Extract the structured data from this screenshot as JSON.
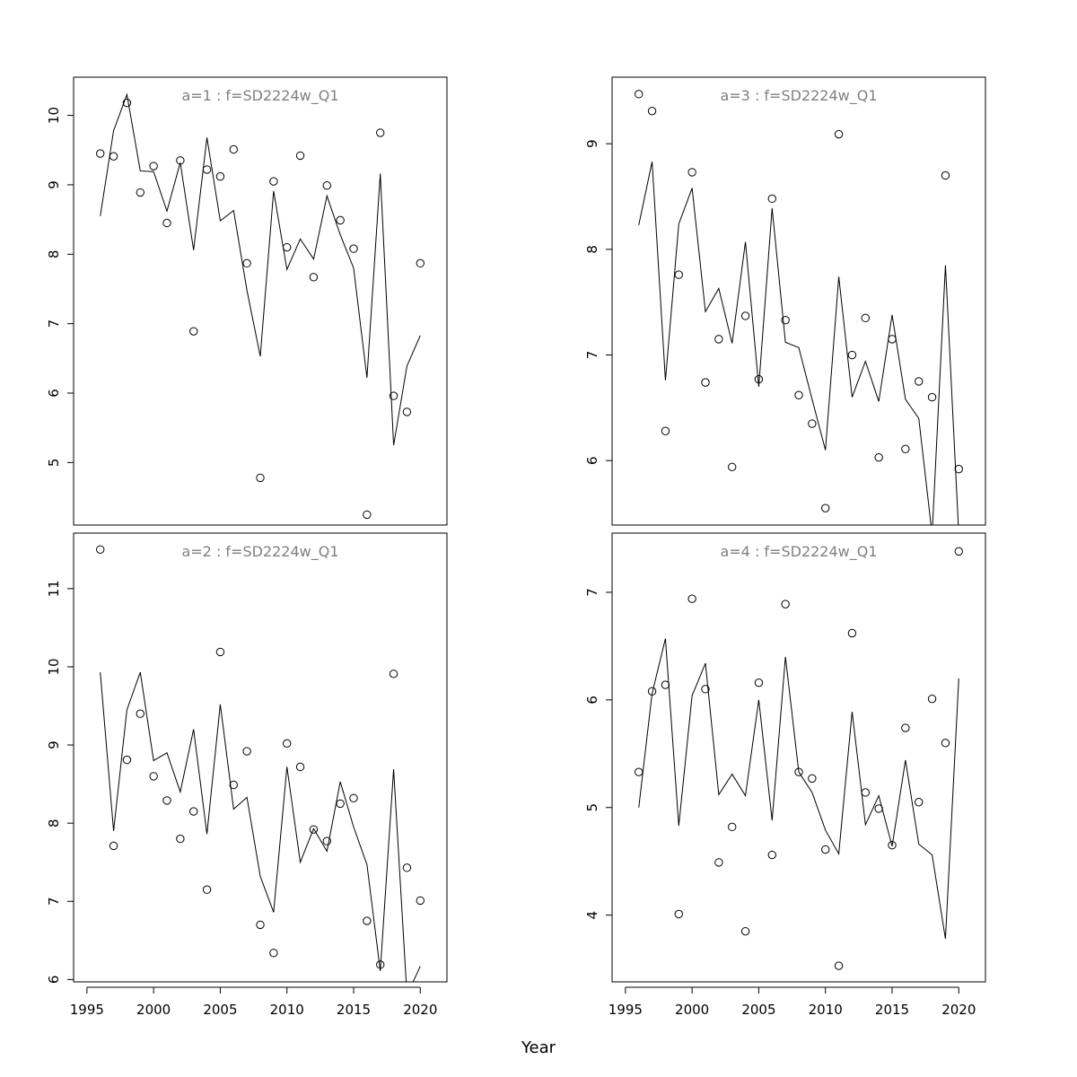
{
  "chart_data": [
    {
      "type": "scatter",
      "title": "a=1  :  f=SD2224w_Q1",
      "xlabel": "",
      "ylabel": "",
      "xlim": [
        1994,
        2022
      ],
      "ylim": [
        4.1,
        10.55
      ],
      "yticks": [
        5,
        6,
        7,
        8,
        9,
        10
      ],
      "xticks": [],
      "x": [
        1996,
        1997,
        1998,
        1999,
        2000,
        2001,
        2002,
        2003,
        2004,
        2005,
        2006,
        2007,
        2008,
        2009,
        2010,
        2011,
        2012,
        2013,
        2014,
        2015,
        2016,
        2017,
        2018,
        2019,
        2020
      ],
      "series": [
        {
          "kind": "points",
          "values": [
            9.45,
            9.41,
            10.18,
            8.89,
            9.27,
            8.45,
            9.35,
            6.89,
            9.22,
            9.12,
            9.51,
            7.87,
            4.78,
            9.05,
            8.1,
            9.42,
            7.67,
            8.99,
            8.49,
            8.08,
            4.25,
            9.75,
            5.96,
            5.73,
            7.87
          ]
        },
        {
          "kind": "line",
          "values": [
            8.55,
            9.78,
            10.3,
            9.2,
            9.19,
            8.62,
            9.32,
            8.06,
            9.68,
            8.48,
            8.63,
            7.48,
            6.53,
            8.91,
            7.78,
            8.22,
            7.93,
            8.84,
            8.28,
            7.8,
            6.22,
            9.16,
            5.25,
            6.39,
            6.83
          ]
        }
      ]
    },
    {
      "type": "scatter",
      "title": "a=3  :  f=SD2224w_Q1",
      "xlabel": "",
      "ylabel": "",
      "xlim": [
        1994,
        2022
      ],
      "ylim": [
        5.39,
        9.63
      ],
      "yticks": [
        6,
        7,
        8,
        9
      ],
      "xticks": [],
      "x": [
        1996,
        1997,
        1998,
        1999,
        2000,
        2001,
        2002,
        2003,
        2004,
        2005,
        2006,
        2007,
        2008,
        2009,
        2010,
        2011,
        2012,
        2013,
        2014,
        2015,
        2016,
        2017,
        2018,
        2019,
        2020
      ],
      "series": [
        {
          "kind": "points",
          "values": [
            9.47,
            9.31,
            6.28,
            7.76,
            8.73,
            6.74,
            7.15,
            5.94,
            7.37,
            6.77,
            8.48,
            7.33,
            6.62,
            6.35,
            5.55,
            9.09,
            7.0,
            7.35,
            6.03,
            7.15,
            6.11,
            6.75,
            6.6,
            8.7,
            5.92
          ]
        },
        {
          "kind": "line",
          "values": [
            8.23,
            8.83,
            6.76,
            8.24,
            8.58,
            7.41,
            7.63,
            7.11,
            8.07,
            6.7,
            8.39,
            7.12,
            7.07,
            6.58,
            6.1,
            7.74,
            6.6,
            6.94,
            6.56,
            7.38,
            6.58,
            6.4,
            5.3,
            7.85,
            5.3
          ]
        }
      ]
    },
    {
      "type": "scatter",
      "title": "a=2  :  f=SD2224w_Q1",
      "xlabel": "",
      "ylabel": "",
      "xlim": [
        1994,
        2022
      ],
      "ylim": [
        5.97,
        11.71
      ],
      "yticks": [
        6,
        7,
        8,
        9,
        10,
        11
      ],
      "xticks": [
        1995,
        2000,
        2005,
        2010,
        2015,
        2020
      ],
      "x": [
        1996,
        1997,
        1998,
        1999,
        2000,
        2001,
        2002,
        2003,
        2004,
        2005,
        2006,
        2007,
        2008,
        2009,
        2010,
        2011,
        2012,
        2013,
        2014,
        2015,
        2016,
        2017,
        2018,
        2019,
        2020
      ],
      "series": [
        {
          "kind": "points",
          "values": [
            11.5,
            7.71,
            8.81,
            9.4,
            8.6,
            8.29,
            7.8,
            8.15,
            7.15,
            10.19,
            8.49,
            8.92,
            6.7,
            6.34,
            9.02,
            8.72,
            7.92,
            7.77,
            8.25,
            8.32,
            6.75,
            6.19,
            9.91,
            7.43,
            7.01
          ]
        },
        {
          "kind": "line",
          "values": [
            9.93,
            7.9,
            9.45,
            9.93,
            8.8,
            8.9,
            8.4,
            9.2,
            7.86,
            9.52,
            8.18,
            8.33,
            7.32,
            6.86,
            8.72,
            7.5,
            7.93,
            7.64,
            8.53,
            7.95,
            7.47,
            6.11,
            8.69,
            5.8,
            6.17
          ]
        }
      ]
    },
    {
      "type": "scatter",
      "title": "a=4  :  f=SD2224w_Q1",
      "xlabel": "",
      "ylabel": "",
      "xlim": [
        1994,
        2022
      ],
      "ylim": [
        3.38,
        7.55
      ],
      "yticks": [
        4,
        5,
        6,
        7
      ],
      "xticks": [
        1995,
        2000,
        2005,
        2010,
        2015,
        2020
      ],
      "x": [
        1996,
        1997,
        1998,
        1999,
        2000,
        2001,
        2002,
        2003,
        2004,
        2005,
        2006,
        2007,
        2008,
        2009,
        2010,
        2011,
        2012,
        2013,
        2014,
        2015,
        2016,
        2017,
        2018,
        2019,
        2020
      ],
      "series": [
        {
          "kind": "points",
          "values": [
            5.33,
            6.08,
            6.14,
            4.01,
            6.94,
            6.1,
            4.49,
            4.82,
            3.85,
            6.16,
            4.56,
            6.89,
            5.33,
            5.27,
            4.61,
            3.53,
            6.62,
            5.14,
            4.99,
            4.65,
            5.74,
            5.05,
            6.01,
            5.6,
            7.38
          ]
        },
        {
          "kind": "line",
          "values": [
            5.0,
            6.06,
            6.57,
            4.83,
            6.04,
            6.34,
            5.12,
            5.31,
            5.11,
            6.0,
            4.88,
            6.4,
            5.33,
            5.14,
            4.79,
            4.57,
            5.89,
            4.84,
            5.11,
            4.64,
            5.44,
            4.66,
            4.56,
            3.78,
            6.2
          ]
        }
      ]
    }
  ],
  "figure": {
    "xlabel": "Year"
  }
}
